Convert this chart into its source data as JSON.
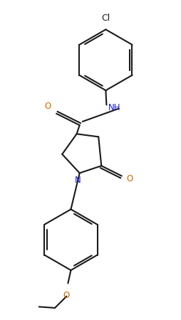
{
  "background_color": "#ffffff",
  "line_color": "#1a1a1a",
  "color_N": "#1a1acc",
  "color_O": "#cc6600",
  "color_Cl": "#1a1a1a",
  "lw": 1.5,
  "dbo": 0.032,
  "fs": 8.5,
  "figsize": [
    2.55,
    4.5
  ],
  "dpi": 100,
  "xlim": [
    -0.15,
    1.3
  ],
  "ylim": [
    0.1,
    4.5
  ]
}
